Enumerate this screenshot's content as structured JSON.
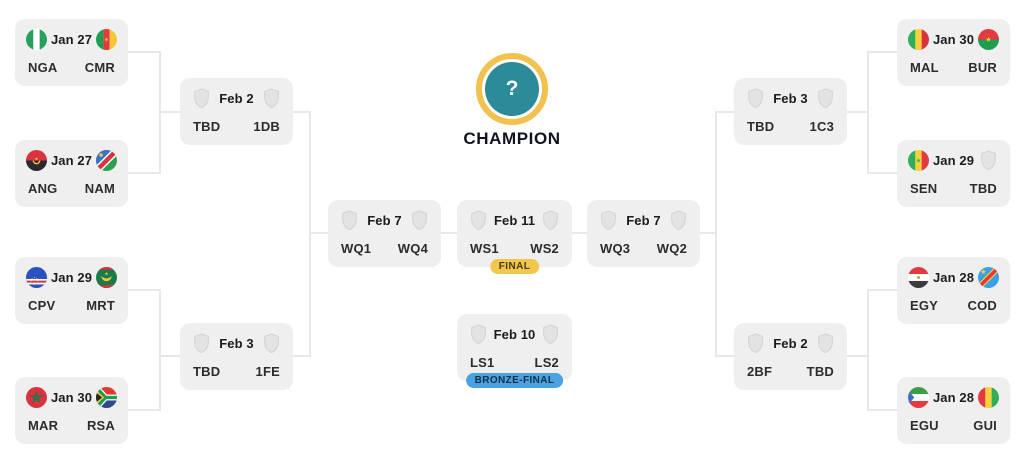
{
  "champion": {
    "label": "CHAMPION",
    "symbol": "?"
  },
  "colors": {
    "card_bg": "#efeff0",
    "line": "#e8e8e8",
    "text_dark": "#1c1c20",
    "champion_teal": "#2b8b96",
    "champion_ring_yellow": "#f2c14e",
    "final_badge_yellow": "#f2c74b",
    "bronze_badge_blue": "#4aa3e0"
  },
  "matches": {
    "l1": {
      "date": "Jan 27",
      "home": "NGA",
      "away": "CMR",
      "home_icon": "flag-nga",
      "away_icon": "flag-cmr"
    },
    "l2": {
      "date": "Jan 27",
      "home": "ANG",
      "away": "NAM",
      "home_icon": "flag-ang",
      "away_icon": "flag-nam"
    },
    "l3": {
      "date": "Jan 29",
      "home": "CPV",
      "away": "MRT",
      "home_icon": "flag-cpv",
      "away_icon": "flag-mrt"
    },
    "l4": {
      "date": "Jan 30",
      "home": "MAR",
      "away": "RSA",
      "home_icon": "flag-mar",
      "away_icon": "flag-rsa"
    },
    "r1": {
      "date": "Jan 30",
      "home": "MAL",
      "away": "BUR",
      "home_icon": "flag-mal",
      "away_icon": "flag-bur"
    },
    "r2": {
      "date": "Jan 29",
      "home": "SEN",
      "away": "TBD",
      "home_icon": "flag-sen",
      "away_icon": "shield"
    },
    "r3": {
      "date": "Jan 28",
      "home": "EGY",
      "away": "COD",
      "home_icon": "flag-egy",
      "away_icon": "flag-cod"
    },
    "r4": {
      "date": "Jan 28",
      "home": "EGU",
      "away": "GUI",
      "home_icon": "flag-egu",
      "away_icon": "flag-gui"
    },
    "qf1": {
      "date": "Feb 2",
      "home": "TBD",
      "away": "1DB",
      "home_icon": "shield",
      "away_icon": "shield"
    },
    "qf2": {
      "date": "Feb 3",
      "home": "TBD",
      "away": "1FE",
      "home_icon": "shield",
      "away_icon": "shield"
    },
    "qf3": {
      "date": "Feb 3",
      "home": "TBD",
      "away": "1C3",
      "home_icon": "shield",
      "away_icon": "shield"
    },
    "qf4": {
      "date": "Feb 2",
      "home": "2BF",
      "away": "TBD",
      "home_icon": "shield",
      "away_icon": "shield"
    },
    "sf1": {
      "date": "Feb 7",
      "home": "WQ1",
      "away": "WQ4",
      "home_icon": "shield",
      "away_icon": "shield"
    },
    "sf2": {
      "date": "Feb 7",
      "home": "WQ3",
      "away": "WQ2",
      "home_icon": "shield",
      "away_icon": "shield"
    },
    "final": {
      "date": "Feb 11",
      "home": "WS1",
      "away": "WS2",
      "home_icon": "shield",
      "away_icon": "shield",
      "badge": "FINAL"
    },
    "bronze": {
      "date": "Feb 10",
      "home": "LS1",
      "away": "LS2",
      "home_icon": "shield",
      "away_icon": "shield",
      "badge": "BRONZE-FINAL"
    }
  }
}
